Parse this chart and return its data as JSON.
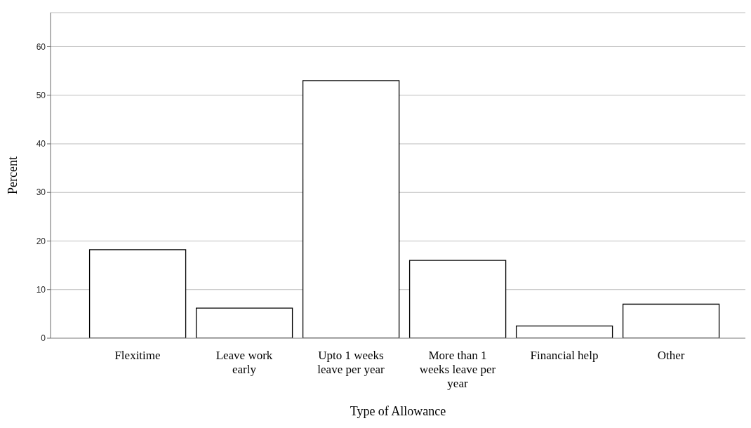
{
  "chart_data": {
    "type": "bar",
    "xlabel": "Type of Allowance",
    "ylabel": "Percent",
    "categories": [
      "Flexitime",
      "Leave work early",
      "Upto 1 weeks leave per year",
      "More than 1 weeks leave per year",
      "Financial help",
      "Other"
    ],
    "values": [
      18.2,
      6.2,
      53.0,
      16.0,
      2.5,
      7.0
    ],
    "color": "#ffffff",
    "ylim": [
      0,
      67
    ],
    "yticks": [
      0,
      10,
      20,
      30,
      40,
      50,
      60
    ],
    "grid": "y",
    "legend": false
  }
}
